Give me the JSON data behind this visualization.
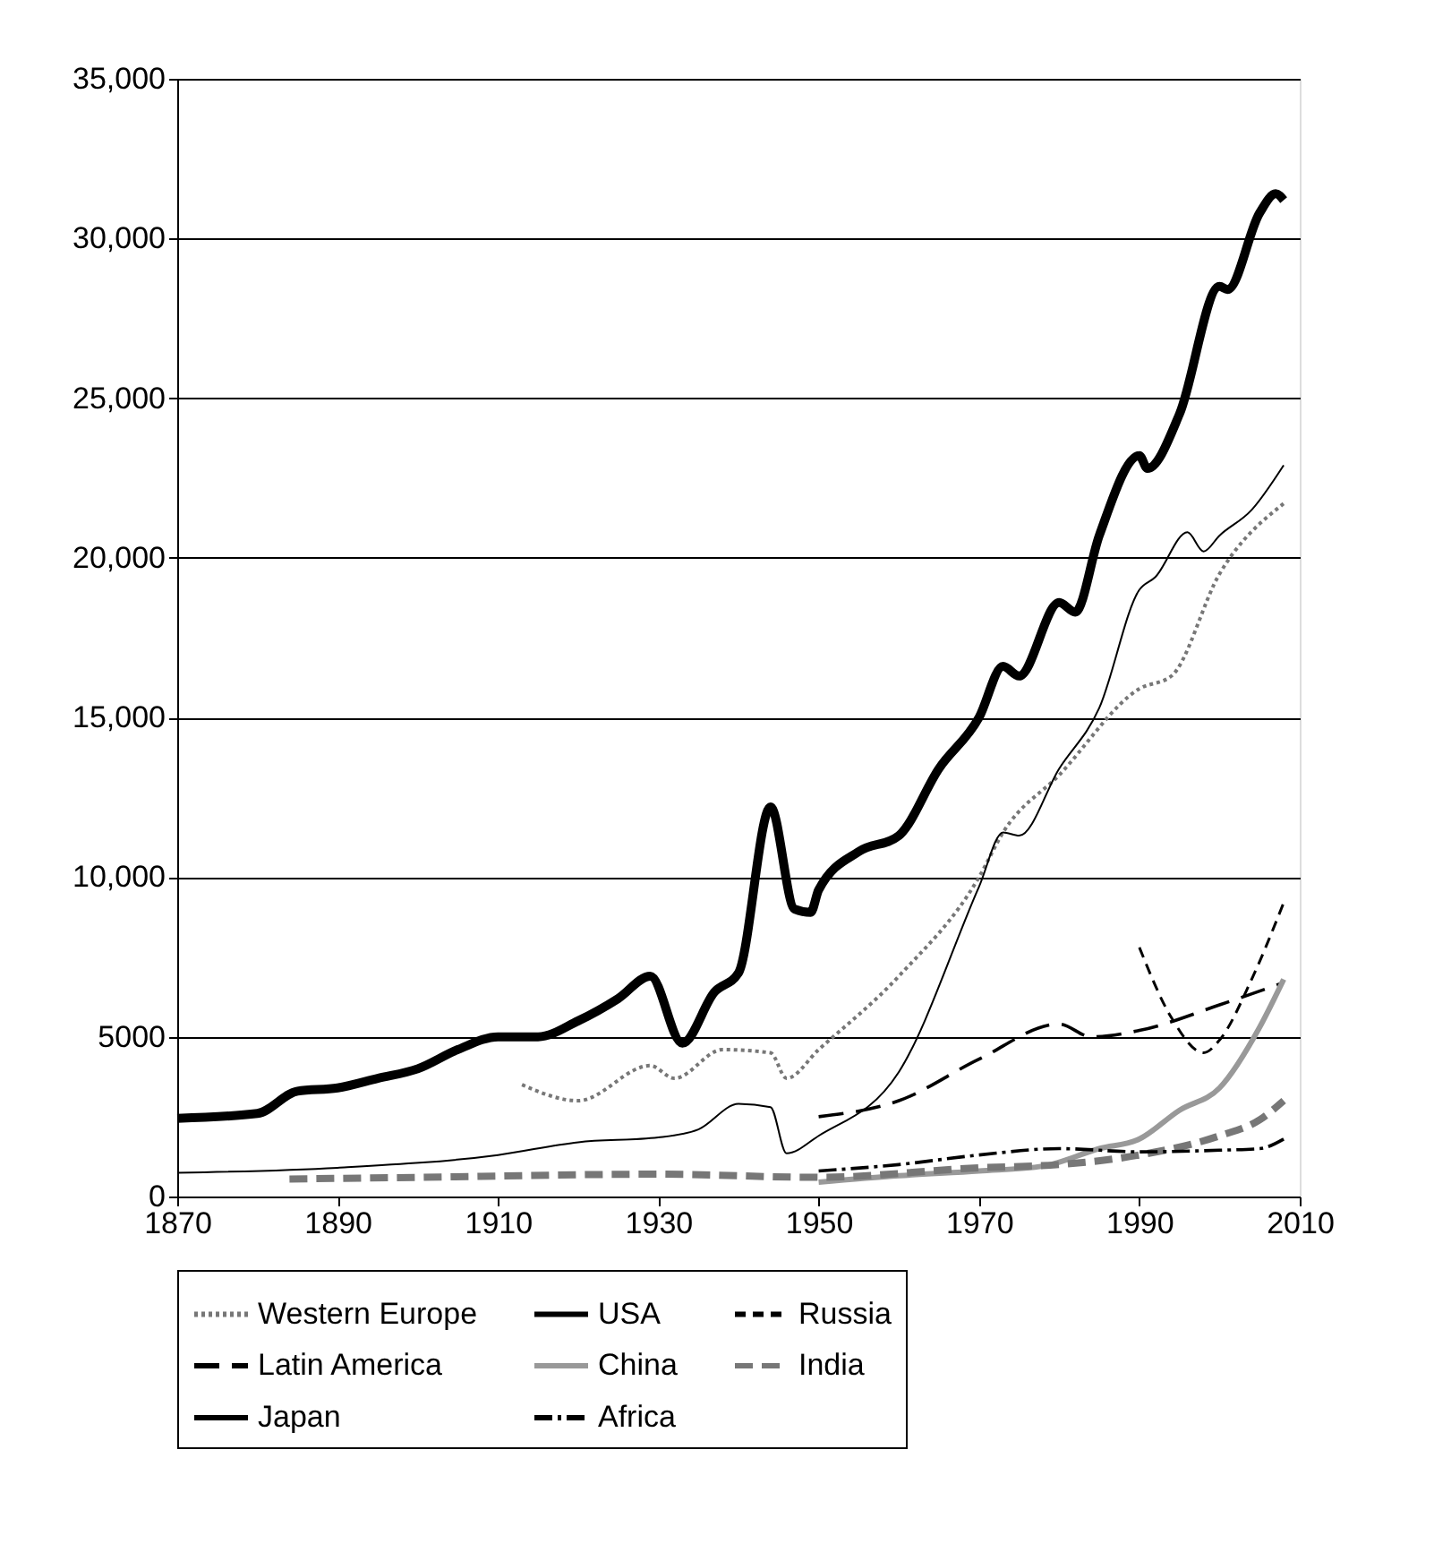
{
  "chart_data": {
    "type": "line",
    "xlim": [
      1870,
      2010
    ],
    "xticks": [
      1870,
      1890,
      1910,
      1930,
      1950,
      1970,
      1990,
      2010
    ],
    "ylim": [
      0,
      35000
    ],
    "yticks": [
      0,
      {
        "value": 5000,
        "label": "5000"
      },
      {
        "value": 10000,
        "label": "10,000"
      },
      {
        "value": 15000,
        "label": "15,000"
      },
      {
        "value": 20000,
        "label": "20,000"
      },
      {
        "value": 25000,
        "label": "25,000"
      },
      {
        "value": 30000,
        "label": "30,000"
      },
      {
        "value": 35000,
        "label": "35,000"
      }
    ],
    "grid": "y",
    "legend": "bottom",
    "series": [
      {
        "name": "Western Europe",
        "color": "#777777",
        "line_style": "dotted",
        "x": [
          1913,
          1920,
          1929,
          1932,
          1938,
          1944,
          1946,
          1950,
          1960,
          1970,
          1973,
          1980,
          1990,
          1994,
          2000,
          2008
        ],
        "values": [
          3500,
          3000,
          4100,
          3700,
          4600,
          4500,
          3700,
          4600,
          6900,
          10000,
          11400,
          13200,
          15900,
          16300,
          19500,
          21700
        ]
      },
      {
        "name": "USA",
        "color": "#000000",
        "line_style": "solid",
        "x": [
          1870,
          1880,
          1885,
          1890,
          1895,
          1900,
          1905,
          1910,
          1915,
          1920,
          1925,
          1929,
          1933,
          1937,
          1940,
          1944,
          1947,
          1949,
          1950,
          1955,
          1960,
          1965,
          1970,
          1973,
          1975,
          1980,
          1982,
          1985,
          1990,
          1991,
          1995,
          2000,
          2001,
          2005,
          2007,
          2008
        ],
        "values": [
          2450,
          2600,
          3300,
          3400,
          3700,
          4000,
          4600,
          5000,
          5000,
          5500,
          6200,
          6900,
          4800,
          6400,
          7000,
          12200,
          9000,
          8900,
          9600,
          10800,
          11300,
          13400,
          15000,
          16600,
          16300,
          18600,
          18300,
          20700,
          23200,
          22800,
          24500,
          28500,
          28400,
          30800,
          31400,
          31200
        ]
      },
      {
        "name": "Russia",
        "color": "#000000",
        "line_style": "dashed",
        "x": [
          1990,
          1994,
          1998,
          2000,
          2004,
          2008
        ],
        "values": [
          7800,
          5600,
          4500,
          4900,
          6800,
          9200
        ]
      },
      {
        "name": "Latin America",
        "color": "#000000",
        "line_style": "dashed",
        "x": [
          1950,
          1960,
          1970,
          1980,
          1984,
          1990,
          2000,
          2008
        ],
        "values": [
          2500,
          3000,
          4300,
          5400,
          5000,
          5200,
          6000,
          6700
        ]
      },
      {
        "name": "China",
        "color": "#999999",
        "line_style": "solid",
        "x": [
          1950,
          1960,
          1970,
          1978,
          1985,
          1990,
          1995,
          2000,
          2005,
          2008
        ],
        "values": [
          450,
          650,
          800,
          950,
          1500,
          1800,
          2700,
          3400,
          5300,
          6800
        ]
      },
      {
        "name": "India",
        "color": "#777777",
        "line_style": "dashed",
        "x": [
          1884,
          1900,
          1930,
          1950,
          1970,
          1980,
          1990,
          2000,
          2005,
          2008
        ],
        "values": [
          550,
          600,
          700,
          600,
          900,
          1000,
          1300,
          1900,
          2400,
          3000
        ]
      },
      {
        "name": "Japan",
        "color": "#000000",
        "line_style": "solid",
        "x": [
          1870,
          1890,
          1910,
          1920,
          1930,
          1935,
          1940,
          1944,
          1946,
          1950,
          1960,
          1970,
          1973,
          1975,
          1980,
          1985,
          1990,
          1992,
          1996,
          1998,
          2000,
          2004,
          2008
        ],
        "values": [
          740,
          900,
          1300,
          1700,
          1850,
          2100,
          2900,
          2800,
          1350,
          1900,
          3900,
          9700,
          11400,
          11300,
          13400,
          15300,
          19000,
          19400,
          20800,
          20200,
          20700,
          21500,
          22900
        ]
      },
      {
        "name": "Africa",
        "color": "#000000",
        "line_style": "dashdot",
        "x": [
          1950,
          1960,
          1970,
          1980,
          1990,
          2000,
          2005,
          2008
        ],
        "values": [
          800,
          1000,
          1300,
          1500,
          1400,
          1450,
          1500,
          1800
        ]
      }
    ]
  }
}
